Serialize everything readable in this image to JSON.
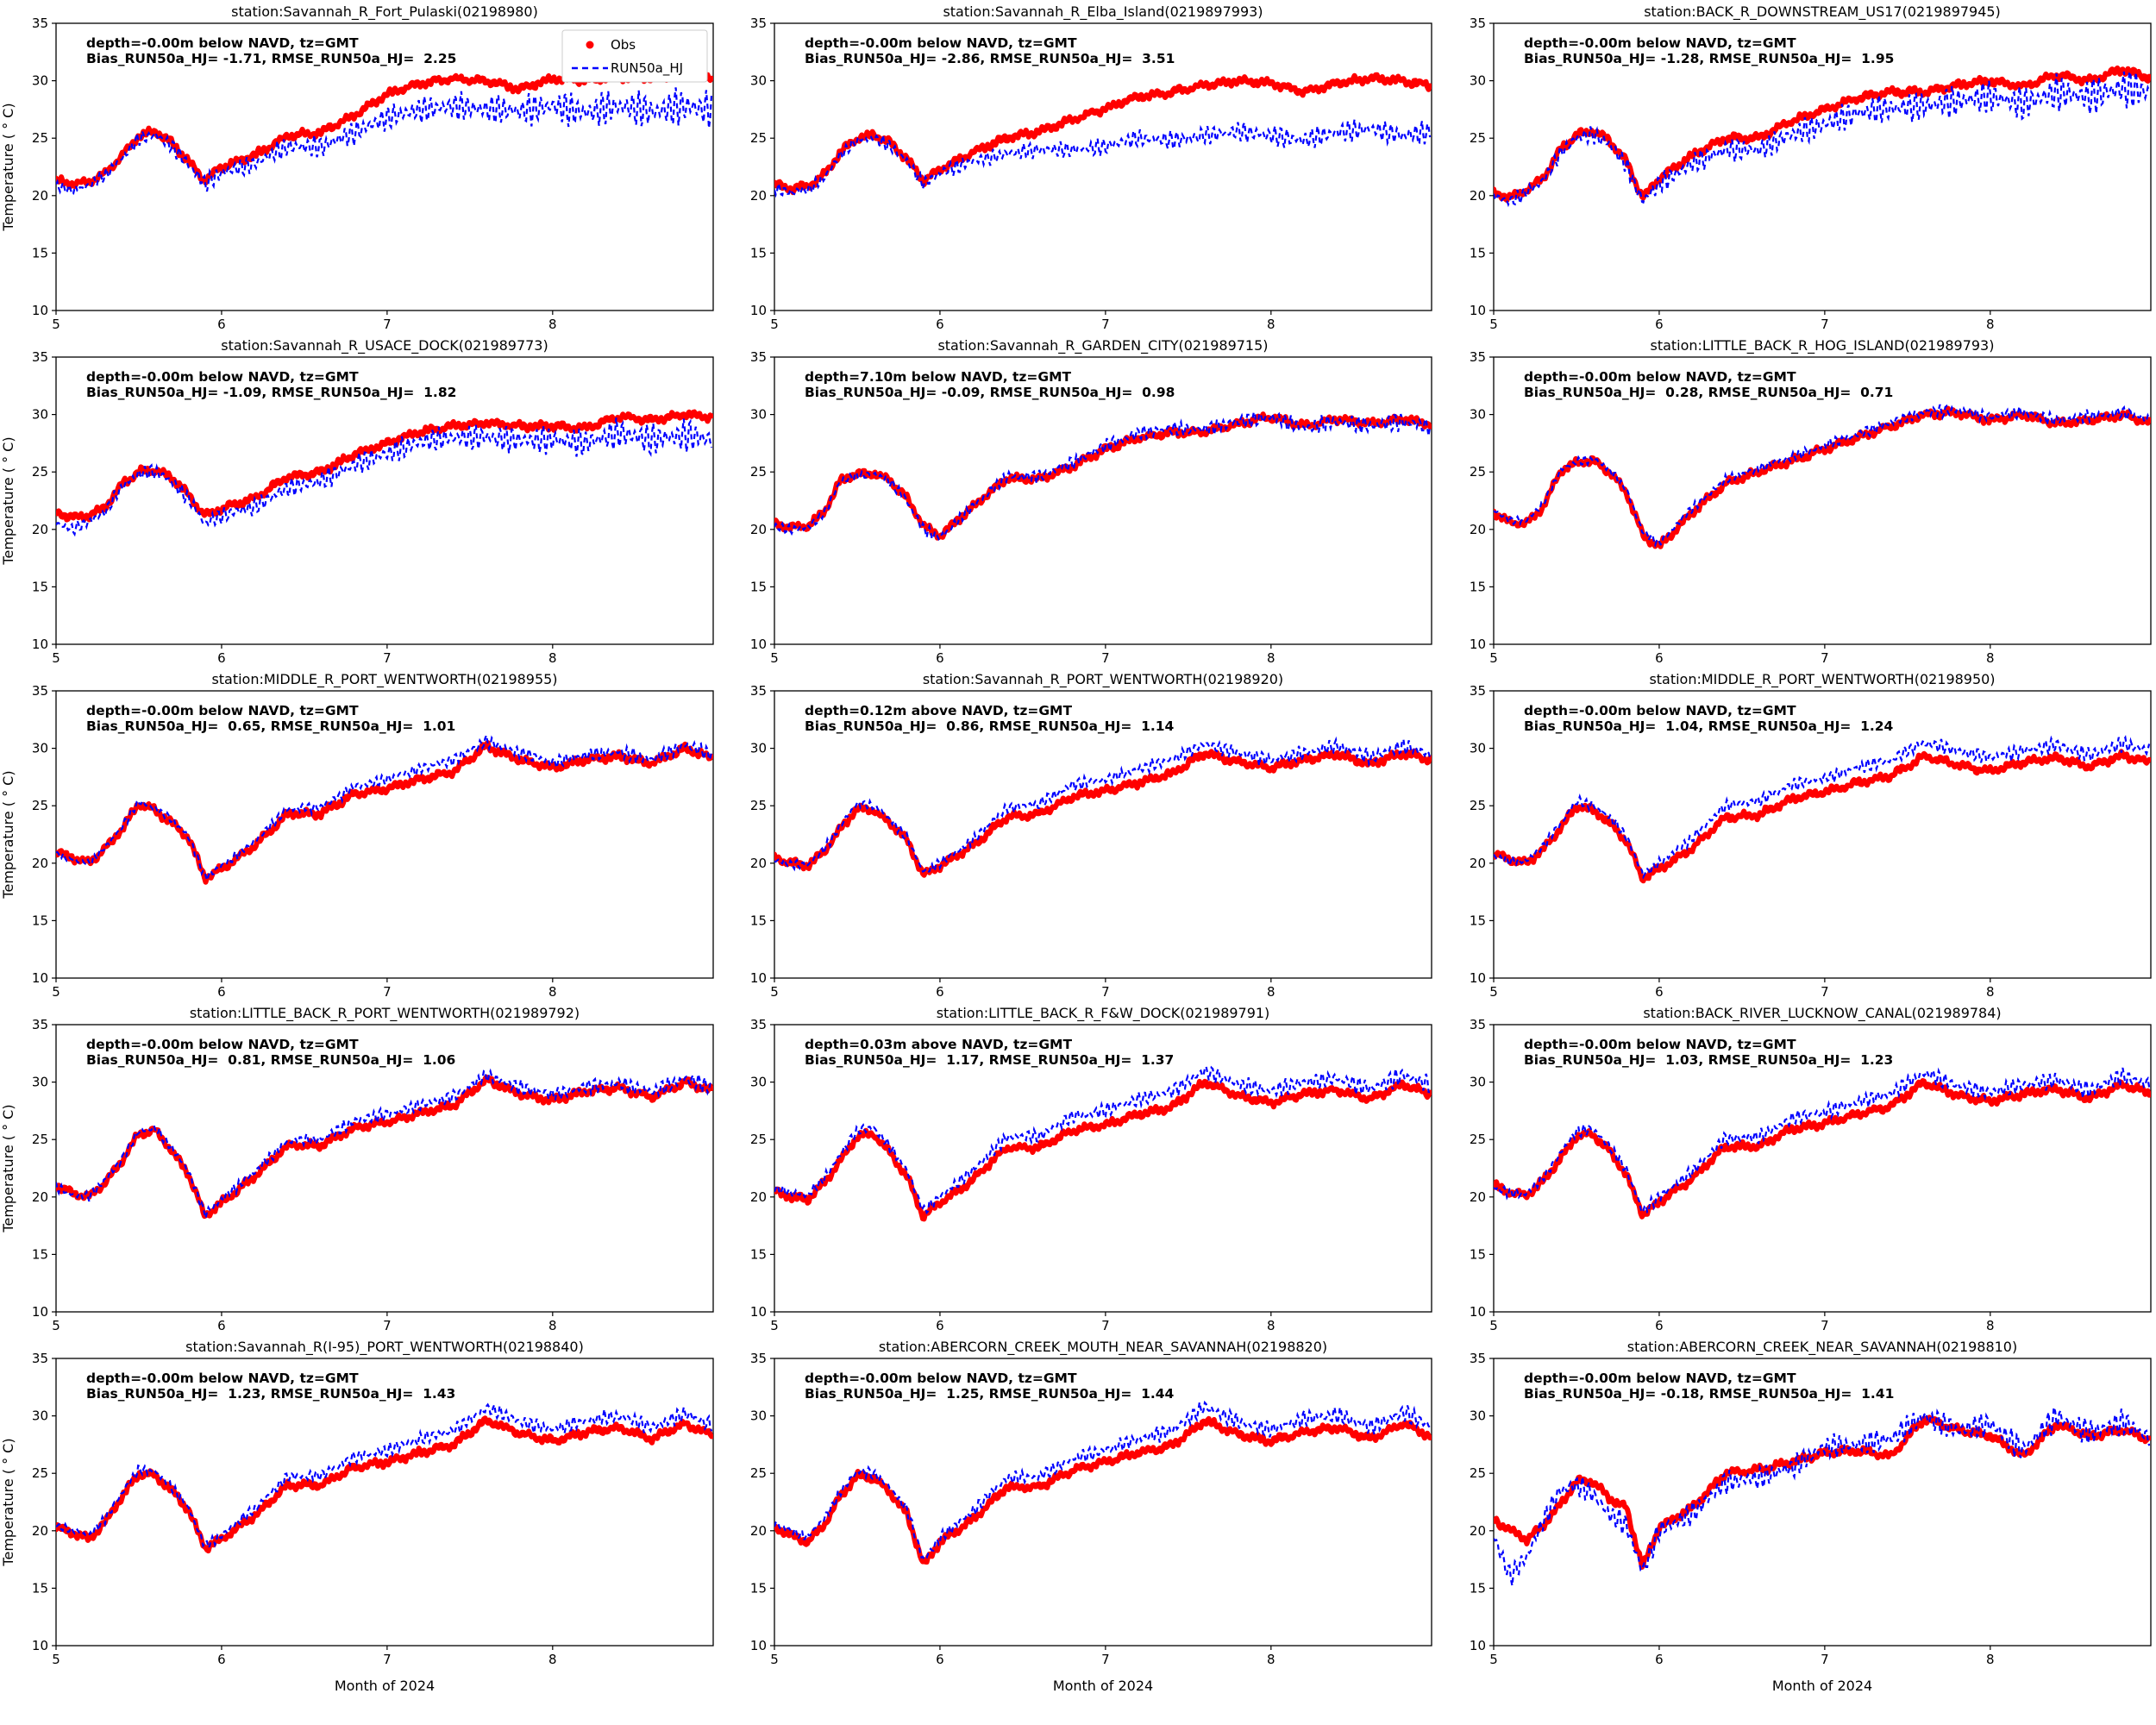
{
  "figure": {
    "xlabel": "Month of 2024",
    "ylabel": "Temperature ( ° C)",
    "legend": {
      "obs": "Obs",
      "model": "RUN50a_HJ",
      "position": "upper right",
      "shown_on_chart": 0
    },
    "colors": {
      "obs": "#ff0000",
      "model": "#0000ff",
      "frame": "#000000",
      "legend_border": "#cccccc"
    }
  },
  "chart_data": {
    "type": "scatter",
    "grid": false,
    "x_range": [
      5,
      8.97
    ],
    "y_range": [
      10,
      35
    ],
    "x_ticks": [
      5,
      6,
      7,
      8
    ],
    "y_ticks": [
      10,
      15,
      20,
      25,
      30,
      35
    ],
    "x": [
      5.0,
      5.1,
      5.2,
      5.3,
      5.4,
      5.5,
      5.6,
      5.7,
      5.8,
      5.9,
      6.0,
      6.2,
      6.4,
      6.6,
      6.8,
      7.0,
      7.2,
      7.4,
      7.6,
      7.8,
      8.0,
      8.2,
      8.4,
      8.6,
      8.8,
      8.95
    ],
    "series_names": [
      "Obs",
      "RUN50a_HJ"
    ],
    "charts": [
      {
        "title": "station:Savannah_R_Fort_Pulaski(02198980)",
        "depth_label": "depth=-0.00m below NAVD, tz=GMT",
        "stats_label": "Bias_RUN50a_HJ= -1.71, RMSE_RUN50a_HJ=  2.25",
        "bias": -1.71,
        "rmse": 2.25,
        "osc": [
          0.4,
          1.5
        ],
        "obs": [
          21.3,
          21.0,
          21.2,
          22.0,
          23.5,
          25.2,
          25.6,
          24.6,
          23.0,
          21.3,
          22.5,
          23.5,
          25.2,
          25.5,
          27.0,
          28.8,
          29.8,
          30.2,
          30.0,
          29.3,
          30.2,
          30.0,
          30.3,
          30.2,
          30.6,
          30.4
        ],
        "model": [
          20.9,
          20.4,
          20.9,
          21.8,
          23.3,
          25.0,
          25.3,
          24.3,
          22.7,
          21.0,
          22.0,
          22.8,
          24.3,
          24.2,
          25.5,
          26.8,
          27.5,
          27.8,
          27.5,
          27.4,
          27.8,
          27.2,
          27.8,
          27.3,
          27.8,
          27.5
        ]
      },
      {
        "title": "station:Savannah_R_Elba_Island(0219897993)",
        "depth_label": "depth=-0.00m below NAVD, tz=GMT",
        "stats_label": "Bias_RUN50a_HJ= -2.86, RMSE_RUN50a_HJ=  3.51",
        "bias": -2.86,
        "rmse": 3.51,
        "osc": [
          0.4,
          0.9
        ],
        "obs": [
          21.0,
          20.6,
          20.8,
          21.8,
          23.8,
          25.0,
          25.3,
          24.6,
          23.2,
          21.3,
          22.3,
          23.8,
          25.0,
          25.6,
          26.6,
          27.6,
          28.6,
          29.0,
          29.6,
          30.0,
          29.8,
          29.0,
          29.8,
          30.2,
          30.0,
          29.6
        ],
        "model": [
          20.6,
          20.3,
          20.5,
          21.5,
          23.6,
          24.8,
          25.0,
          24.3,
          23.0,
          21.0,
          22.0,
          23.0,
          23.6,
          24.0,
          24.0,
          24.3,
          25.0,
          24.8,
          25.2,
          25.6,
          25.2,
          24.8,
          25.5,
          25.8,
          25.2,
          25.5
        ]
      },
      {
        "title": "station:BACK_R_DOWNSTREAM_US17(0219897945)",
        "depth_label": "depth=-0.00m below NAVD, tz=GMT",
        "stats_label": "Bias_RUN50a_HJ= -1.28, RMSE_RUN50a_HJ=  1.95",
        "bias": -1.28,
        "rmse": 1.95,
        "osc": [
          0.5,
          1.5
        ],
        "obs": [
          20.3,
          19.8,
          20.5,
          21.5,
          24.0,
          25.3,
          25.6,
          24.8,
          23.0,
          19.8,
          21.5,
          23.5,
          25.0,
          25.0,
          26.5,
          27.5,
          28.5,
          29.0,
          29.0,
          29.6,
          30.0,
          29.5,
          30.5,
          30.0,
          31.0,
          30.3
        ],
        "model": [
          20.0,
          19.5,
          20.3,
          21.3,
          23.7,
          25.0,
          25.3,
          24.5,
          22.7,
          19.5,
          21.0,
          22.8,
          24.0,
          24.0,
          25.3,
          26.2,
          27.2,
          27.6,
          27.8,
          28.2,
          28.6,
          28.0,
          29.0,
          28.6,
          29.4,
          29.0
        ]
      },
      {
        "title": "station:Savannah_R_USACE_DOCK(021989773)",
        "depth_label": "depth=-0.00m below NAVD, tz=GMT",
        "stats_label": "Bias_RUN50a_HJ= -1.09, RMSE_RUN50a_HJ=  1.82",
        "bias": -1.09,
        "rmse": 1.82,
        "osc": [
          0.4,
          1.3
        ],
        "obs": [
          21.5,
          21.0,
          21.2,
          22.0,
          24.0,
          25.0,
          25.2,
          24.5,
          23.0,
          21.2,
          21.8,
          22.7,
          24.6,
          25.0,
          26.5,
          27.5,
          28.5,
          29.0,
          29.3,
          29.0,
          29.0,
          28.8,
          29.8,
          29.5,
          30.0,
          29.8
        ],
        "model": [
          20.5,
          20.0,
          20.7,
          21.6,
          23.8,
          24.8,
          25.0,
          24.2,
          22.7,
          20.5,
          21.2,
          22.0,
          23.6,
          24.2,
          25.6,
          26.6,
          27.6,
          28.0,
          28.0,
          27.8,
          27.8,
          27.5,
          28.4,
          27.8,
          28.2,
          27.9
        ]
      },
      {
        "title": "station:Savannah_R_GARDEN_CITY(021989715)",
        "depth_label": "depth=7.10m below NAVD, tz=GMT",
        "stats_label": "Bias_RUN50a_HJ= -0.09, RMSE_RUN50a_HJ=  0.98",
        "bias": -0.09,
        "rmse": 0.98,
        "osc": [
          0.3,
          0.7
        ],
        "obs": [
          20.5,
          20.2,
          20.3,
          21.5,
          24.3,
          24.8,
          24.9,
          24.3,
          22.7,
          20.3,
          19.4,
          22.0,
          24.4,
          24.4,
          25.5,
          27.0,
          28.0,
          28.4,
          28.5,
          29.2,
          29.8,
          29.0,
          29.6,
          29.2,
          29.6,
          29.2
        ],
        "model": [
          20.3,
          20.0,
          20.2,
          21.4,
          24.2,
          24.7,
          24.8,
          24.2,
          22.5,
          20.0,
          19.3,
          22.0,
          24.6,
          24.6,
          25.8,
          27.3,
          28.4,
          28.7,
          28.7,
          29.4,
          29.8,
          28.8,
          29.4,
          29.0,
          29.4,
          29.0
        ]
      },
      {
        "title": "station:LITTLE_BACK_R_HOG_ISLAND(021989793)",
        "depth_label": "depth=-0.00m below NAVD, tz=GMT",
        "stats_label": "Bias_RUN50a_HJ=  0.28, RMSE_RUN50a_HJ=  0.71",
        "bias": 0.28,
        "rmse": 0.71,
        "osc": [
          0.25,
          0.5
        ],
        "obs": [
          21.5,
          20.6,
          20.5,
          22.0,
          25.0,
          25.8,
          26.0,
          25.0,
          23.3,
          19.5,
          18.5,
          21.5,
          24.0,
          25.0,
          26.0,
          27.0,
          28.0,
          29.0,
          30.0,
          30.2,
          29.5,
          30.0,
          29.2,
          29.5,
          30.0,
          29.3
        ],
        "model": [
          21.6,
          20.8,
          20.8,
          22.2,
          25.1,
          25.9,
          26.1,
          25.2,
          23.5,
          19.8,
          18.8,
          21.8,
          24.3,
          25.3,
          26.3,
          27.3,
          28.3,
          29.3,
          30.2,
          30.4,
          29.8,
          30.2,
          29.5,
          29.8,
          30.2,
          29.6
        ]
      },
      {
        "title": "station:MIDDLE_R_PORT_WENTWORTH(02198955)",
        "depth_label": "depth=-0.00m below NAVD, tz=GMT",
        "stats_label": "Bias_RUN50a_HJ=  0.65, RMSE_RUN50a_HJ=  1.01",
        "bias": 0.65,
        "rmse": 1.01,
        "osc": [
          0.25,
          0.55
        ],
        "obs": [
          21.0,
          20.5,
          20.0,
          21.3,
          23.0,
          25.2,
          24.6,
          23.5,
          22.2,
          18.7,
          19.5,
          21.5,
          24.3,
          24.3,
          26.0,
          26.5,
          27.3,
          28.0,
          30.2,
          29.0,
          28.3,
          29.0,
          29.3,
          28.7,
          30.0,
          29.2
        ],
        "model": [
          20.8,
          20.3,
          20.0,
          21.4,
          23.2,
          25.4,
          24.8,
          23.7,
          22.3,
          18.8,
          19.7,
          21.9,
          24.7,
          24.9,
          26.6,
          27.3,
          28.2,
          29.0,
          30.6,
          29.6,
          28.8,
          29.4,
          29.7,
          29.0,
          30.3,
          29.5
        ]
      },
      {
        "title": "station:Savannah_R_PORT_WENTWORTH(02198920)",
        "depth_label": "depth=0.12m above NAVD, tz=GMT",
        "stats_label": "Bias_RUN50a_HJ=  0.86, RMSE_RUN50a_HJ=  1.14",
        "bias": 0.86,
        "rmse": 1.14,
        "osc": [
          0.3,
          0.6
        ],
        "obs": [
          20.5,
          20.0,
          19.8,
          21.0,
          23.0,
          24.8,
          24.6,
          23.5,
          22.0,
          19.0,
          19.8,
          21.5,
          24.0,
          24.3,
          25.8,
          26.3,
          27.0,
          27.8,
          29.6,
          28.8,
          28.3,
          29.0,
          29.5,
          28.6,
          29.6,
          29.0
        ],
        "model": [
          20.3,
          19.9,
          19.8,
          21.2,
          23.3,
          25.2,
          25.0,
          23.8,
          22.2,
          19.2,
          20.0,
          22.0,
          24.8,
          25.2,
          26.8,
          27.3,
          28.2,
          29.0,
          30.4,
          29.6,
          29.0,
          29.6,
          30.2,
          29.2,
          30.2,
          29.5
        ]
      },
      {
        "title": "station:MIDDLE_R_PORT_WENTWORTH(02198950)",
        "depth_label": "depth=-0.00m below NAVD, tz=GMT",
        "stats_label": "Bias_RUN50a_HJ=  1.04, RMSE_RUN50a_HJ=  1.24",
        "bias": 1.04,
        "rmse": 1.24,
        "osc": [
          0.3,
          0.6
        ],
        "obs": [
          20.8,
          20.3,
          20.0,
          21.2,
          23.0,
          25.0,
          24.6,
          23.5,
          22.0,
          18.7,
          19.5,
          21.3,
          24.0,
          24.2,
          25.6,
          26.2,
          27.0,
          27.6,
          29.3,
          28.6,
          28.0,
          28.8,
          29.2,
          28.4,
          29.4,
          28.8
        ],
        "model": [
          20.6,
          20.2,
          20.2,
          21.5,
          23.4,
          25.4,
          25.0,
          24.0,
          22.4,
          19.0,
          20.0,
          22.2,
          25.0,
          25.4,
          26.8,
          27.4,
          28.3,
          29.0,
          30.5,
          29.8,
          29.2,
          29.8,
          30.3,
          29.4,
          30.4,
          29.8
        ]
      },
      {
        "title": "station:LITTLE_BACK_R_PORT_WENTWORTH(021989792)",
        "depth_label": "depth=-0.00m below NAVD, tz=GMT",
        "stats_label": "Bias_RUN50a_HJ=  0.81, RMSE_RUN50a_HJ=  1.06",
        "bias": 0.81,
        "rmse": 1.06,
        "osc": [
          0.3,
          0.6
        ],
        "obs": [
          21.0,
          20.3,
          20.0,
          21.3,
          23.2,
          25.5,
          25.8,
          24.0,
          22.0,
          18.3,
          19.5,
          21.8,
          24.5,
          24.5,
          26.0,
          26.5,
          27.3,
          28.0,
          30.2,
          29.0,
          28.4,
          29.2,
          29.5,
          28.7,
          30.0,
          29.3
        ],
        "model": [
          20.9,
          20.2,
          20.1,
          21.5,
          23.4,
          25.7,
          26.0,
          24.2,
          22.2,
          18.5,
          19.8,
          22.2,
          24.9,
          25.0,
          26.6,
          27.2,
          28.0,
          28.7,
          30.6,
          29.5,
          28.9,
          29.6,
          29.9,
          29.1,
          30.3,
          29.6
        ]
      },
      {
        "title": "station:LITTLE_BACK_R_F&W_DOCK(021989791)",
        "depth_label": "depth=0.03m above NAVD, tz=GMT",
        "stats_label": "Bias_RUN50a_HJ=  1.17, RMSE_RUN50a_HJ=  1.37",
        "bias": 1.17,
        "rmse": 1.37,
        "osc": [
          0.35,
          0.7
        ],
        "obs": [
          20.5,
          20.0,
          19.8,
          21.2,
          23.2,
          25.3,
          25.5,
          23.8,
          21.8,
          18.3,
          19.5,
          21.5,
          24.3,
          24.3,
          25.8,
          26.3,
          27.2,
          27.8,
          30.0,
          28.8,
          28.2,
          29.0,
          29.3,
          28.5,
          29.8,
          29.0
        ],
        "model": [
          20.8,
          20.3,
          20.2,
          21.6,
          23.7,
          25.8,
          26.0,
          24.3,
          22.3,
          18.8,
          20.0,
          22.3,
          25.2,
          25.3,
          27.0,
          27.5,
          28.5,
          29.2,
          31.0,
          29.8,
          29.2,
          30.0,
          30.3,
          29.4,
          30.6,
          29.8
        ]
      },
      {
        "title": "station:BACK_RIVER_LUCKNOW_CANAL(021989784)",
        "depth_label": "depth=-0.00m below NAVD, tz=GMT",
        "stats_label": "Bias_RUN50a_HJ=  1.03, RMSE_RUN50a_HJ=  1.23",
        "bias": 1.03,
        "rmse": 1.23,
        "osc": [
          0.35,
          0.7
        ],
        "obs": [
          21.0,
          20.4,
          20.2,
          21.4,
          23.3,
          25.3,
          25.5,
          24.0,
          22.0,
          18.4,
          19.6,
          21.6,
          24.4,
          24.4,
          25.9,
          26.4,
          27.2,
          27.9,
          30.0,
          28.9,
          28.3,
          29.0,
          29.4,
          28.6,
          29.8,
          29.1
        ],
        "model": [
          20.9,
          20.3,
          20.3,
          21.7,
          23.7,
          25.7,
          25.9,
          24.4,
          22.4,
          18.7,
          20.0,
          22.2,
          25.1,
          25.2,
          26.8,
          27.4,
          28.3,
          29.0,
          30.8,
          29.7,
          29.1,
          29.8,
          30.2,
          29.3,
          30.5,
          29.8
        ]
      },
      {
        "title": "station:Savannah_R(I-95)_PORT_WENTWORTH(02198840)",
        "depth_label": "depth=-0.00m below NAVD, tz=GMT",
        "stats_label": "Bias_RUN50a_HJ=  1.23, RMSE_RUN50a_HJ=  1.43",
        "bias": 1.23,
        "rmse": 1.43,
        "osc": [
          0.3,
          0.6
        ],
        "obs": [
          20.3,
          19.8,
          19.3,
          20.8,
          23.0,
          25.0,
          24.8,
          23.5,
          21.8,
          18.5,
          19.3,
          21.3,
          24.0,
          24.0,
          25.5,
          26.0,
          26.8,
          27.5,
          29.6,
          28.5,
          27.8,
          28.6,
          29.0,
          28.0,
          29.3,
          28.4
        ],
        "model": [
          20.5,
          20.0,
          19.6,
          21.1,
          23.3,
          25.3,
          25.1,
          23.8,
          22.0,
          18.7,
          19.6,
          21.9,
          24.7,
          24.8,
          26.4,
          27.0,
          28.0,
          28.7,
          30.7,
          29.5,
          28.8,
          29.6,
          30.0,
          29.0,
          30.2,
          29.3
        ]
      },
      {
        "title": "station:ABERCORN_CREEK_MOUTH_NEAR_SAVANNAH(02198820)",
        "depth_label": "depth=-0.00m below NAVD, tz=GMT",
        "stats_label": "Bias_RUN50a_HJ=  1.25, RMSE_RUN50a_HJ=  1.44",
        "bias": 1.25,
        "rmse": 1.44,
        "osc": [
          0.35,
          0.7
        ],
        "obs": [
          20.3,
          19.6,
          19.0,
          20.5,
          23.0,
          24.8,
          24.6,
          23.3,
          21.5,
          17.0,
          19.0,
          21.0,
          23.8,
          23.8,
          25.3,
          26.0,
          26.8,
          27.4,
          29.6,
          28.4,
          27.8,
          28.6,
          29.0,
          28.0,
          29.4,
          28.3
        ],
        "model": [
          20.6,
          20.0,
          19.5,
          21.0,
          23.4,
          25.2,
          25.0,
          23.7,
          21.9,
          17.4,
          19.4,
          21.7,
          24.6,
          24.7,
          26.3,
          27.0,
          28.0,
          28.7,
          30.8,
          29.5,
          28.8,
          29.7,
          30.1,
          29.0,
          30.3,
          29.2
        ]
      },
      {
        "title": "station:ABERCORN_CREEK_NEAR_SAVANNAH(02198810)",
        "depth_label": "depth=-0.00m below NAVD, tz=GMT",
        "stats_label": "Bias_RUN50a_HJ= -0.18, RMSE_RUN50a_HJ=  1.41",
        "bias": -0.18,
        "rmse": 1.41,
        "osc": [
          0.8,
          1.0
        ],
        "obs": [
          21.0,
          20.0,
          19.2,
          20.5,
          22.2,
          24.3,
          24.3,
          22.8,
          22.0,
          16.8,
          20.3,
          22.0,
          25.0,
          25.3,
          26.0,
          26.8,
          27.0,
          26.5,
          29.8,
          28.8,
          28.3,
          26.5,
          29.3,
          28.2,
          28.8,
          28.0
        ],
        "model": [
          19.5,
          16.0,
          17.8,
          20.8,
          23.5,
          24.0,
          23.2,
          21.5,
          20.5,
          16.5,
          20.0,
          21.5,
          24.2,
          24.6,
          25.5,
          27.3,
          27.5,
          28.0,
          30.0,
          28.7,
          29.3,
          27.0,
          30.0,
          28.5,
          29.5,
          28.2
        ]
      }
    ]
  }
}
